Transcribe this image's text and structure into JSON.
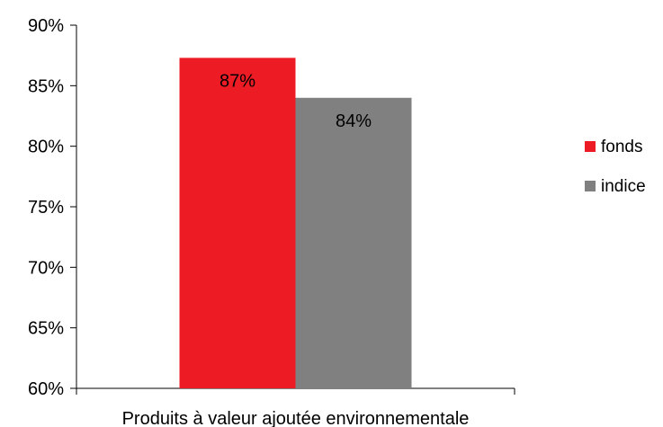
{
  "chart_data": {
    "type": "bar",
    "categories": [
      "Produits à valeur ajoutée environnementale"
    ],
    "series": [
      {
        "name": "fonds",
        "values": [
          87.3
        ],
        "label": "87%",
        "color": "#ED1C24"
      },
      {
        "name": "indice",
        "values": [
          84
        ],
        "label": "84%",
        "color": "#808080"
      }
    ],
    "ylim": [
      60,
      90
    ],
    "yticks": [
      60,
      65,
      70,
      75,
      80,
      85,
      90
    ],
    "ytick_labels": [
      "60%",
      "65%",
      "70%",
      "75%",
      "80%",
      "85%",
      "90%"
    ],
    "grid": false,
    "legend_position": "right",
    "title": "",
    "xlabel": "",
    "ylabel": ""
  }
}
